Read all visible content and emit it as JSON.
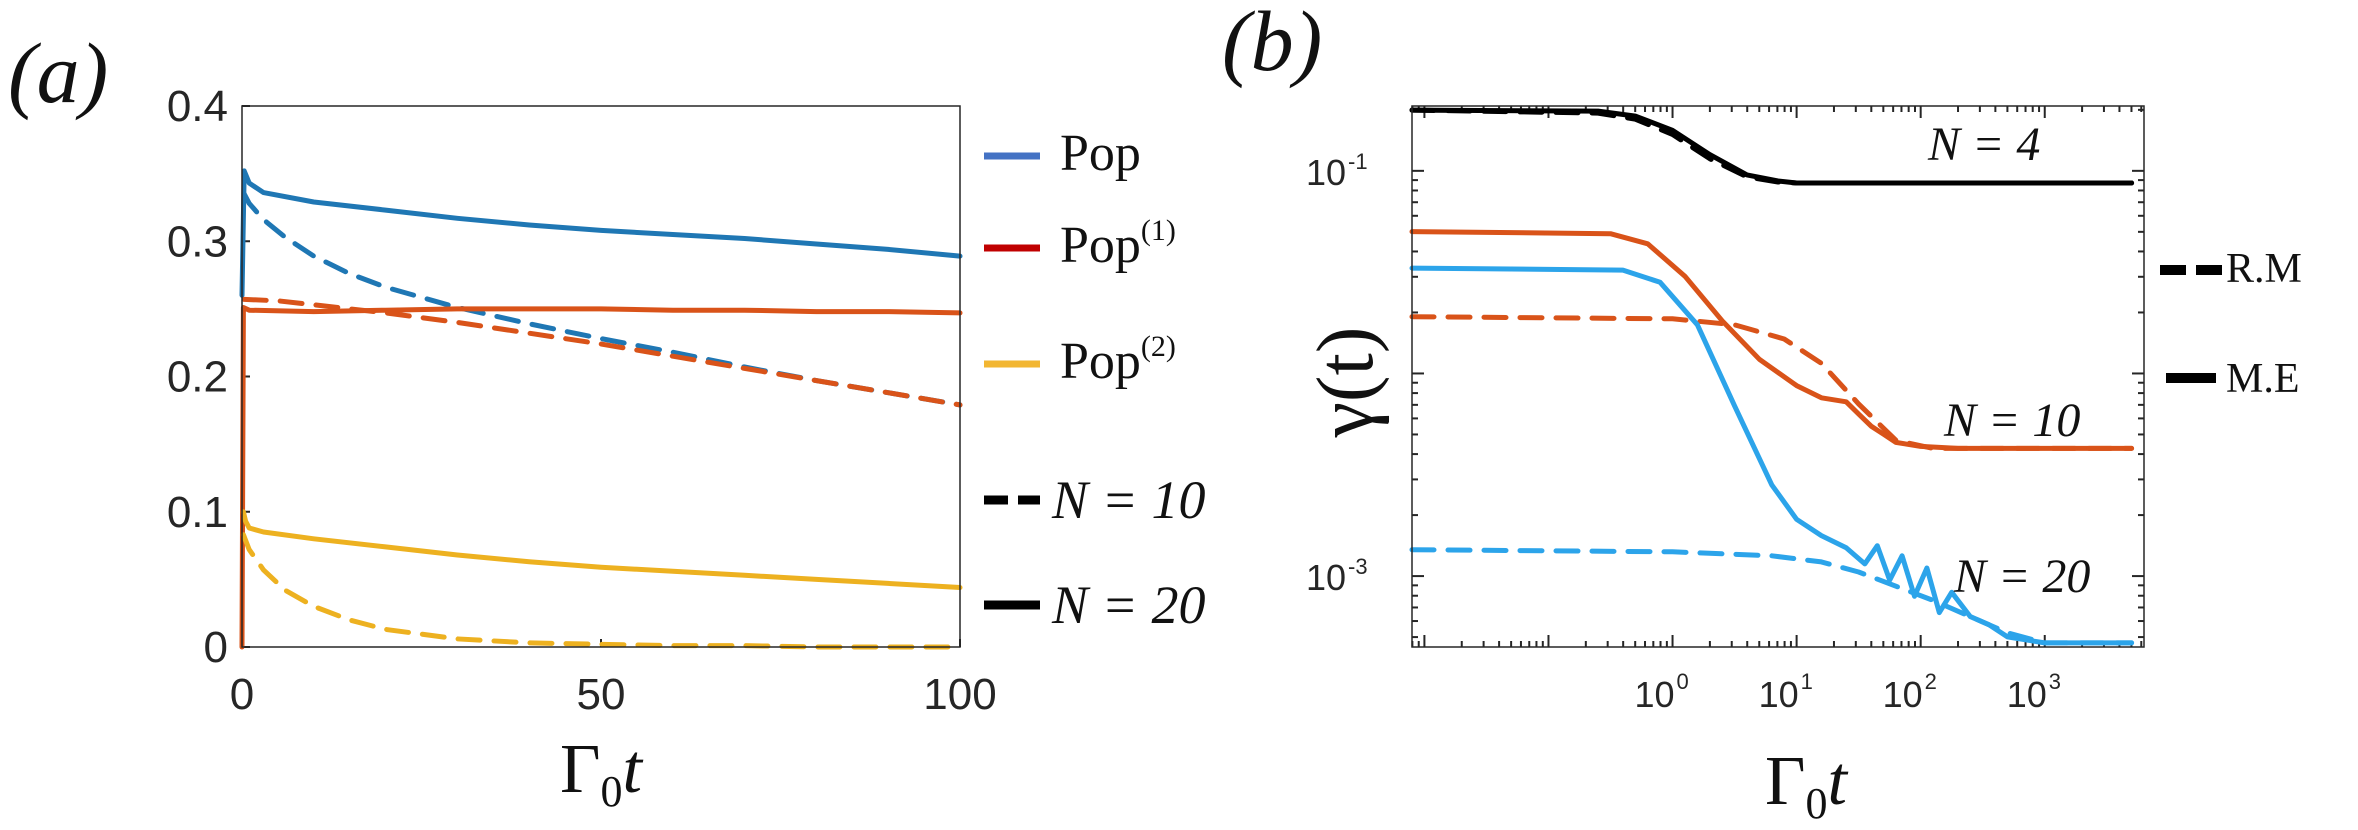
{
  "chart_data": [
    {
      "panel": "a",
      "type": "line",
      "panel_label": "(a)",
      "xlabel": "Γ0t",
      "ylabel": "",
      "xlim": [
        0,
        100
      ],
      "ylim": [
        0,
        0.4
      ],
      "x_ticks": [
        0,
        50,
        100
      ],
      "x_tick_labels": [
        "0",
        "50",
        "100"
      ],
      "y_ticks": [
        0,
        0.1,
        0.2,
        0.3,
        0.4
      ],
      "y_tick_labels": [
        "0",
        "0.1",
        "0.2",
        "0.3",
        "0.4"
      ],
      "legend_position": "right",
      "legend": [
        {
          "label": "Pop",
          "sup": "",
          "color": "#4472c4",
          "style": "solid"
        },
        {
          "label": "Pop",
          "sup": "(1)",
          "color": "#c00000",
          "style": "solid"
        },
        {
          "label": "Pop",
          "sup": "(2)",
          "color": "#f2b632",
          "style": "solid"
        },
        {
          "label": "N = 10",
          "sup": "",
          "color": "#000000",
          "style": "dashed"
        },
        {
          "label": "N = 20",
          "sup": "",
          "color": "#000000",
          "style": "solid"
        }
      ],
      "series": [
        {
          "name": "Pop, N = 20",
          "color": "#1f77b4",
          "style": "solid",
          "x": [
            0,
            0.3,
            1,
            3,
            10,
            20,
            30,
            40,
            50,
            60,
            70,
            80,
            90,
            100
          ],
          "y": [
            0.26,
            0.352,
            0.343,
            0.336,
            0.329,
            0.323,
            0.317,
            0.312,
            0.308,
            0.305,
            0.302,
            0.298,
            0.294,
            0.289
          ]
        },
        {
          "name": "Pop, N = 10",
          "color": "#1f77b4",
          "style": "dashed",
          "x": [
            0.3,
            1,
            3,
            6,
            10,
            15,
            20,
            30,
            40,
            50,
            60,
            70,
            80,
            90,
            100
          ],
          "y": [
            0.335,
            0.328,
            0.316,
            0.303,
            0.289,
            0.276,
            0.266,
            0.251,
            0.239,
            0.228,
            0.218,
            0.207,
            0.197,
            0.188,
            0.179
          ]
        },
        {
          "name": "Pop(1), N = 20",
          "color": "#d95319",
          "style": "solid",
          "x": [
            0,
            0.2,
            1,
            10,
            20,
            30,
            40,
            50,
            60,
            70,
            80,
            90,
            100
          ],
          "y": [
            0.0,
            0.251,
            0.249,
            0.248,
            0.249,
            0.25,
            0.25,
            0.25,
            0.249,
            0.249,
            0.248,
            0.248,
            0.247
          ]
        },
        {
          "name": "Pop(1), N = 10",
          "color": "#d95319",
          "style": "dashed",
          "x": [
            0.3,
            5,
            10,
            20,
            30,
            40,
            50,
            60,
            70,
            80,
            90,
            100
          ],
          "y": [
            0.257,
            0.256,
            0.253,
            0.247,
            0.24,
            0.232,
            0.224,
            0.215,
            0.206,
            0.197,
            0.188,
            0.179
          ]
        },
        {
          "name": "Pop(2), N = 20",
          "color": "#edb120",
          "style": "solid",
          "x": [
            0.2,
            0.5,
            1,
            3,
            10,
            20,
            30,
            40,
            50,
            60,
            70,
            80,
            90,
            100
          ],
          "y": [
            0.1,
            0.093,
            0.088,
            0.085,
            0.08,
            0.074,
            0.068,
            0.063,
            0.059,
            0.056,
            0.053,
            0.05,
            0.047,
            0.044
          ]
        },
        {
          "name": "Pop(2), N = 10",
          "color": "#edb120",
          "style": "dashed",
          "x": [
            0.2,
            1,
            3,
            6,
            10,
            15,
            20,
            30,
            40,
            50,
            60,
            70,
            80,
            90,
            100
          ],
          "y": [
            0.083,
            0.072,
            0.057,
            0.042,
            0.03,
            0.02,
            0.013,
            0.006,
            0.003,
            0.002,
            0.001,
            0.001,
            0.0,
            0.0,
            0.0
          ]
        }
      ]
    },
    {
      "panel": "b",
      "type": "line",
      "panel_label": "(b)",
      "xscale": "log",
      "yscale": "log",
      "xlabel": "Γ0t",
      "ylabel": "γ(t)",
      "xlim_log10": [
        -2.1,
        3.8
      ],
      "ylim_log10": [
        -3.35,
        -0.68
      ],
      "x_ticks_log10": [
        0,
        1,
        2,
        3
      ],
      "x_tick_labels": [
        {
          "base": "10",
          "exp": "0"
        },
        {
          "base": "10",
          "exp": "1"
        },
        {
          "base": "10",
          "exp": "2"
        },
        {
          "base": "10",
          "exp": "3"
        }
      ],
      "y_ticks_log10": [
        -1,
        -3
      ],
      "y_tick_labels": [
        {
          "base": "10",
          "exp": "-1"
        },
        {
          "base": "10",
          "exp": "-3"
        }
      ],
      "legend_position": "right",
      "legend": [
        {
          "label": "R.M",
          "style": "dashed",
          "color": "#000000"
        },
        {
          "label": "M.E",
          "style": "solid",
          "color": "#000000"
        }
      ],
      "annotations": [
        "N = 4",
        "N = 10",
        "N = 20"
      ],
      "series": [
        {
          "name": "N = 4, M.E",
          "color": "#000000",
          "style": "solid",
          "x_log10": [
            -2.1,
            -0.6,
            -0.3,
            0.0,
            0.3,
            0.6,
            0.85,
            1.0,
            3.7
          ],
          "y_log10": [
            -0.7,
            -0.705,
            -0.73,
            -0.8,
            -0.92,
            -1.02,
            -1.05,
            -1.06,
            -1.06
          ]
        },
        {
          "name": "N = 4, R.M",
          "color": "#000000",
          "style": "dashed",
          "x_log10": [
            -2.1,
            -0.6,
            -0.3,
            0.0,
            0.3,
            0.6,
            0.85,
            1.0,
            3.7
          ],
          "y_log10": [
            -0.7,
            -0.715,
            -0.745,
            -0.82,
            -0.94,
            -1.03,
            -1.055,
            -1.06,
            -1.06
          ]
        },
        {
          "name": "N = 10, M.E",
          "color": "#d95319",
          "style": "solid",
          "x_log10": [
            -2.1,
            -0.5,
            -0.2,
            0.1,
            0.4,
            0.7,
            1.0,
            1.2,
            1.4,
            1.5,
            1.6,
            1.7,
            1.8,
            2.0,
            2.3,
            3.7
          ],
          "y_log10": [
            -1.3,
            -1.31,
            -1.36,
            -1.52,
            -1.74,
            -1.93,
            -2.06,
            -2.12,
            -2.14,
            -2.2,
            -2.26,
            -2.3,
            -2.34,
            -2.36,
            -2.37,
            -2.37
          ]
        },
        {
          "name": "N = 10, R.M",
          "color": "#d95319",
          "style": "dashed",
          "x_log10": [
            -2.1,
            0.0,
            0.5,
            0.9,
            1.2,
            1.5,
            1.8,
            2.1,
            3.7
          ],
          "y_log10": [
            -1.72,
            -1.73,
            -1.76,
            -1.83,
            -1.95,
            -2.15,
            -2.33,
            -2.37,
            -2.37
          ]
        },
        {
          "name": "N = 20, M.E",
          "color": "#2ca4ea",
          "style": "solid",
          "x_log10": [
            -2.1,
            -0.4,
            -0.1,
            0.2,
            0.5,
            0.8,
            1.0,
            1.2,
            1.4,
            1.55,
            1.65,
            1.75,
            1.85,
            1.95,
            2.05,
            2.15,
            2.25,
            2.4,
            2.55,
            2.7,
            3.0,
            3.7
          ],
          "y_log10": [
            -1.48,
            -1.49,
            -1.55,
            -1.76,
            -2.16,
            -2.55,
            -2.72,
            -2.8,
            -2.86,
            -2.94,
            -2.85,
            -3.02,
            -2.9,
            -3.1,
            -2.96,
            -3.18,
            -3.08,
            -3.2,
            -3.24,
            -3.3,
            -3.33,
            -3.33
          ]
        },
        {
          "name": "N = 20, R.M",
          "color": "#2ca4ea",
          "style": "dashed",
          "x_log10": [
            -2.1,
            0.0,
            0.8,
            1.2,
            1.5,
            1.8,
            2.1,
            2.4,
            2.7,
            3.0,
            3.7
          ],
          "y_log10": [
            -2.87,
            -2.88,
            -2.9,
            -2.93,
            -2.98,
            -3.05,
            -3.12,
            -3.2,
            -3.28,
            -3.33,
            -3.33
          ]
        }
      ]
    }
  ]
}
